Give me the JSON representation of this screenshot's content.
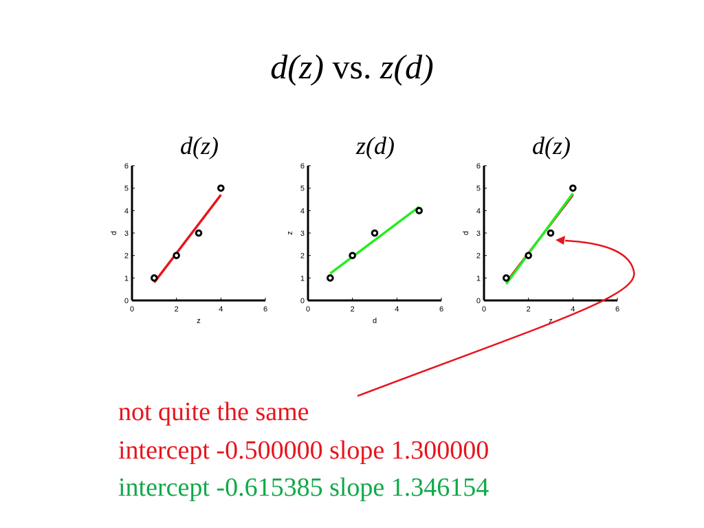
{
  "title": {
    "left": "d(z)",
    "middle": "vs.",
    "right": "z(d)"
  },
  "chart_data": [
    {
      "type": "scatter",
      "title": "d(z)",
      "xlabel": "z",
      "ylabel": "d",
      "xlim": [
        0,
        6
      ],
      "ylim": [
        0,
        6
      ],
      "xticks": [
        0,
        2,
        4,
        6
      ],
      "yticks": [
        0,
        1,
        2,
        3,
        4,
        5,
        6
      ],
      "grid": false,
      "points": {
        "x": [
          1,
          2,
          3,
          4
        ],
        "y": [
          1,
          2,
          3,
          5
        ]
      },
      "lines": [
        {
          "color": "#e8141c",
          "intercept": -0.5,
          "slope": 1.3,
          "x_range": [
            1,
            4
          ]
        }
      ]
    },
    {
      "type": "scatter",
      "title": "z(d)",
      "xlabel": "d",
      "ylabel": "z",
      "xlim": [
        0,
        6
      ],
      "ylim": [
        0,
        6
      ],
      "xticks": [
        0,
        2,
        4,
        6
      ],
      "yticks": [
        0,
        1,
        2,
        3,
        4,
        5,
        6
      ],
      "grid": false,
      "points": {
        "x": [
          1,
          2,
          3,
          5
        ],
        "y": [
          1,
          2,
          3,
          4
        ]
      },
      "lines": [
        {
          "color": "#22ee22",
          "intercept": 0.4571,
          "slope": 0.7429,
          "x_range": [
            1,
            5
          ]
        }
      ]
    },
    {
      "type": "scatter",
      "title": "d(z)",
      "xlabel": "z",
      "ylabel": "d",
      "xlim": [
        0,
        6
      ],
      "ylim": [
        0,
        6
      ],
      "xticks": [
        0,
        2,
        4,
        6
      ],
      "yticks": [
        0,
        1,
        2,
        3,
        4,
        5,
        6
      ],
      "grid": false,
      "points": {
        "x": [
          1,
          2,
          3,
          4
        ],
        "y": [
          1,
          2,
          3,
          5
        ]
      },
      "lines": [
        {
          "color": "#e8141c",
          "intercept": -0.5,
          "slope": 1.3,
          "x_range": [
            1,
            4
          ]
        },
        {
          "color": "#22ee22",
          "intercept": -0.615385,
          "slope": 1.346154,
          "x_range": [
            1,
            4
          ]
        }
      ]
    }
  ],
  "notes": {
    "line1": "not quite the same",
    "line2": "intercept -0.500000 slope 1.300000",
    "line3": "intercept -0.615385 slope 1.346154"
  },
  "colors": {
    "red": "#e8141c",
    "green": "#10a848",
    "fit_green": "#22ee22"
  }
}
